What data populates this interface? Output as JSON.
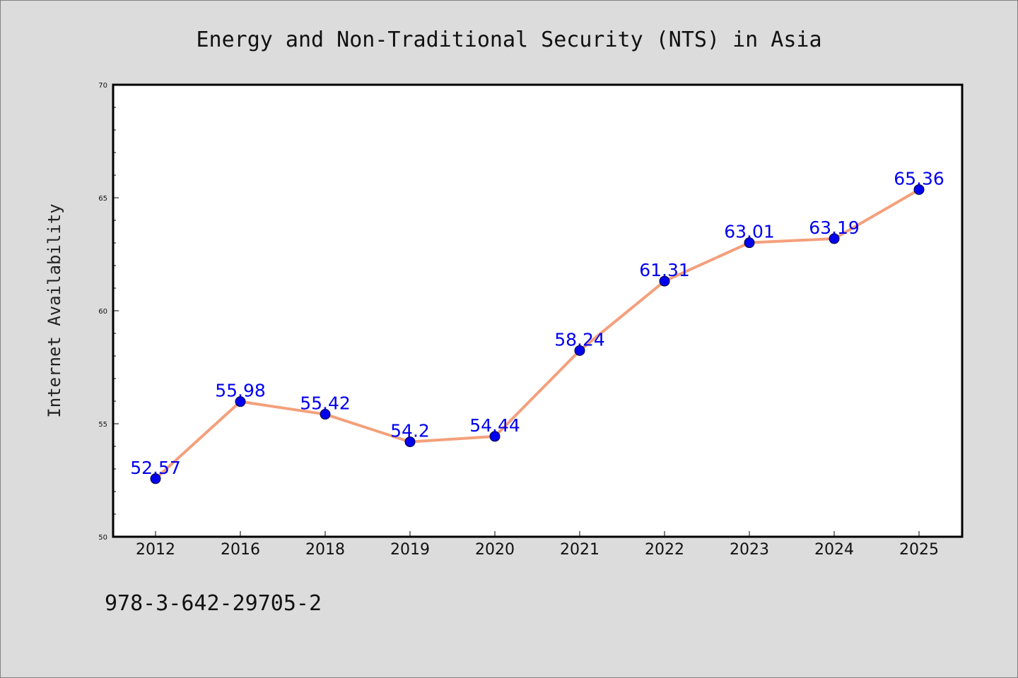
{
  "chart_data": {
    "type": "line",
    "title": "Energy and Non-Traditional Security (NTS) in Asia",
    "xlabel": "",
    "ylabel": "Internet Availability",
    "categories": [
      "2012",
      "2016",
      "2018",
      "2019",
      "2020",
      "2021",
      "2022",
      "2023",
      "2024",
      "2025"
    ],
    "series": [
      {
        "values": [
          52.57,
          55.98,
          55.42,
          54.2,
          54.44,
          58.24,
          61.31,
          63.01,
          63.19,
          65.36
        ],
        "labels": [
          "52.57",
          "55.98",
          "55.42",
          "54.2",
          "54.44",
          "58.24",
          "61.31",
          "63.01",
          "63.19",
          "65.36"
        ]
      }
    ],
    "ylim": [
      50,
      70
    ],
    "yticks": [
      "50",
      "55",
      "60",
      "65",
      "70"
    ],
    "grid": false,
    "legend": "none",
    "colors": {
      "line": "#f4a07c",
      "marker": "#0000ee",
      "label": "#0000ee",
      "plot_background": "#ffffff",
      "figure_background": "#dcdcdc"
    }
  },
  "footnote": "978-3-642-29705-2"
}
